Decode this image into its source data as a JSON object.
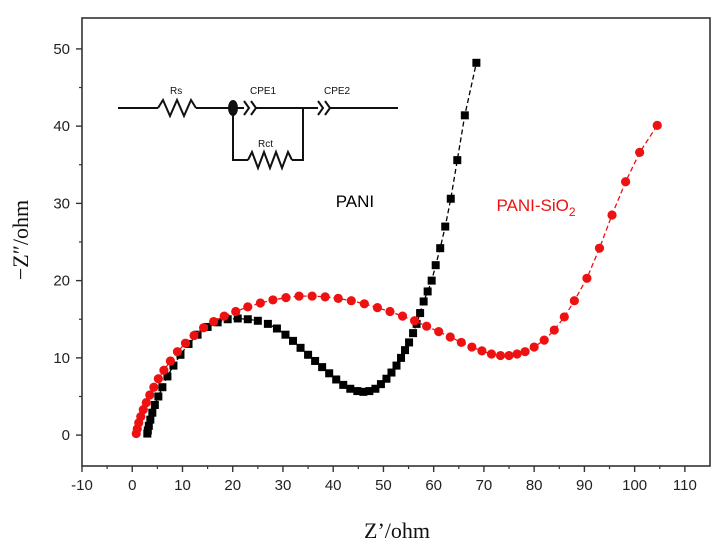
{
  "chart_data": {
    "type": "scatter",
    "xlabel": "Z’/ohm",
    "ylabel": "−Z″/ohm",
    "xlim": [
      -10,
      115
    ],
    "ylim": [
      -4,
      54
    ],
    "xticks": [
      -10,
      0,
      10,
      20,
      30,
      40,
      50,
      60,
      70,
      80,
      90,
      100,
      110
    ],
    "yticks": [
      0,
      10,
      20,
      30,
      40,
      50
    ],
    "grid": false,
    "series": [
      {
        "name": "PANI",
        "label_base": "PANI",
        "label_sub": "",
        "color": "#000000",
        "marker": "square",
        "x": [
          3.0,
          3.1,
          3.3,
          3.6,
          4.0,
          4.5,
          5.2,
          6.0,
          7.0,
          8.2,
          9.6,
          11.2,
          13.0,
          15.0,
          17.0,
          19.0,
          21.0,
          23.0,
          25.0,
          27.0,
          28.8,
          30.5,
          32.0,
          33.5,
          35.0,
          36.4,
          37.8,
          39.2,
          40.6,
          42.0,
          43.4,
          44.8,
          46.0,
          47.2,
          48.4,
          49.5,
          50.6,
          51.6,
          52.6,
          53.5,
          54.3,
          55.1,
          55.9,
          56.6,
          57.3,
          58.0,
          58.8,
          59.6,
          60.4,
          61.3,
          62.3,
          63.4,
          64.7,
          66.2,
          68.5
        ],
        "y": [
          0.2,
          0.6,
          1.2,
          2.0,
          2.9,
          3.9,
          5.0,
          6.2,
          7.6,
          9.0,
          10.4,
          11.8,
          13.0,
          14.0,
          14.6,
          15.0,
          15.1,
          15.0,
          14.8,
          14.4,
          13.8,
          13.0,
          12.2,
          11.3,
          10.4,
          9.6,
          8.8,
          8.0,
          7.2,
          6.5,
          6.0,
          5.7,
          5.6,
          5.7,
          6.0,
          6.6,
          7.3,
          8.1,
          9.0,
          10.0,
          11.0,
          12.0,
          13.2,
          14.4,
          15.8,
          17.3,
          18.6,
          20.0,
          22.0,
          24.2,
          27.0,
          30.6,
          35.6,
          41.4,
          48.2
        ]
      },
      {
        "name": "PANI-SiO2",
        "label_base": "PANI-SiO",
        "label_sub": "2",
        "color": "#ee1111",
        "marker": "circle",
        "x": [
          0.8,
          1.0,
          1.3,
          1.7,
          2.2,
          2.8,
          3.5,
          4.3,
          5.2,
          6.3,
          7.6,
          9.0,
          10.6,
          12.3,
          14.2,
          16.2,
          18.3,
          20.6,
          23.0,
          25.5,
          28.0,
          30.6,
          33.2,
          35.8,
          38.4,
          41.0,
          43.6,
          46.2,
          48.8,
          51.3,
          53.8,
          56.2,
          58.6,
          61.0,
          63.3,
          65.5,
          67.6,
          69.6,
          71.5,
          73.3,
          75.0,
          76.6,
          78.2,
          80.0,
          82.0,
          84.0,
          86.0,
          88.0,
          90.5,
          93.0,
          95.5,
          98.2,
          101.0,
          104.5
        ],
        "y": [
          0.2,
          0.8,
          1.6,
          2.4,
          3.3,
          4.2,
          5.2,
          6.2,
          7.3,
          8.4,
          9.6,
          10.8,
          11.9,
          12.9,
          13.9,
          14.7,
          15.4,
          16.0,
          16.6,
          17.1,
          17.5,
          17.8,
          18.0,
          18.0,
          17.9,
          17.7,
          17.4,
          17.0,
          16.5,
          16.0,
          15.4,
          14.8,
          14.1,
          13.4,
          12.7,
          12.0,
          11.4,
          10.9,
          10.5,
          10.3,
          10.3,
          10.5,
          10.8,
          11.4,
          12.3,
          13.6,
          15.3,
          17.4,
          20.3,
          24.2,
          28.5,
          32.8,
          36.6,
          40.1
        ]
      }
    ],
    "inset_circuit": {
      "labels": [
        "Rs",
        "CPE1",
        "CPE2",
        "Rct"
      ]
    }
  }
}
